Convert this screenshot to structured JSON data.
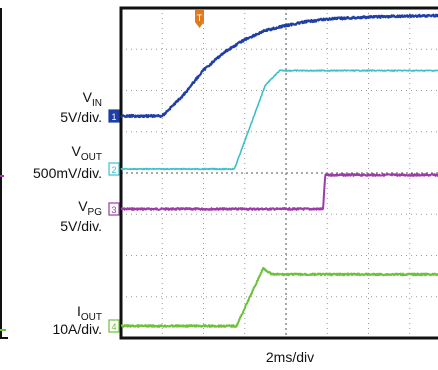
{
  "colors": {
    "vin": "#1f3fa6",
    "vout": "#3fbfcc",
    "vpg": "#9b3aa8",
    "iout": "#6cc23a",
    "trigger": "#e07a1f",
    "grid": "#9a9a9a",
    "frame": "#111111"
  },
  "trigger_marker": "T",
  "channels": {
    "vin": {
      "main": "V",
      "sub": "IN",
      "scale": "5V/div.",
      "marker": "1"
    },
    "vout": {
      "main": "V",
      "sub": "OUT",
      "scale": "500mV/div.",
      "marker": "2"
    },
    "vpg": {
      "main": "V",
      "sub": "PG",
      "scale": "5V/div.",
      "marker": "3"
    },
    "iout": {
      "main": "I",
      "sub": "OUT",
      "scale": "10A/div.",
      "marker": "4"
    }
  },
  "chart_data": {
    "type": "line",
    "title": "",
    "xlabel": "2ms/div",
    "ylabel": "",
    "x_unit": "ms",
    "xlim": [
      0,
      16
    ],
    "grid": true,
    "series": [
      {
        "name": "VIN",
        "x": [
          0,
          2,
          3,
          4,
          5,
          6,
          7,
          8,
          9,
          10,
          12,
          14,
          16
        ],
        "y": [
          0.0,
          0.0,
          0.8,
          1.8,
          2.5,
          3.0,
          3.35,
          3.55,
          3.7,
          3.8,
          3.88,
          3.92,
          3.95
        ]
      },
      {
        "name": "VOUT",
        "x": [
          0,
          5.5,
          7.0,
          7.7,
          16
        ],
        "y": [
          0.0,
          0.0,
          1.75,
          2.05,
          2.05
        ]
      },
      {
        "name": "VPG",
        "x": [
          0,
          9.8,
          9.9,
          16
        ],
        "y": [
          0.0,
          0.0,
          0.85,
          0.85
        ]
      },
      {
        "name": "IOUT",
        "x": [
          0,
          5.6,
          6.9,
          7.3,
          16
        ],
        "y": [
          0.0,
          0.0,
          1.35,
          1.2,
          1.2
        ]
      }
    ]
  }
}
